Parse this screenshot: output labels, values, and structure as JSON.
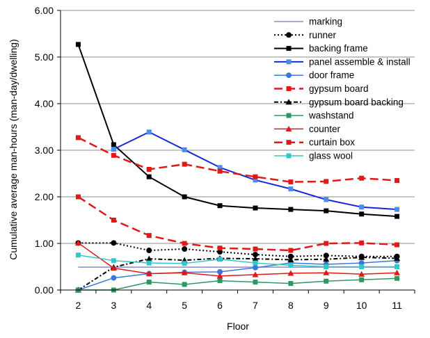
{
  "chart_data": {
    "type": "line",
    "title": "",
    "xlabel": "Floor",
    "ylabel": "Cumulative average man-hours (man-day/dwelling)",
    "x": [
      2,
      3,
      4,
      5,
      6,
      7,
      8,
      9,
      10,
      11
    ],
    "x_tick_labels": [
      "2",
      "3",
      "4",
      "5",
      "6",
      "7",
      "8",
      "9",
      "10",
      "11"
    ],
    "ylim": [
      0,
      6
    ],
    "y_ticks": [
      0,
      1,
      2,
      3,
      4,
      5,
      6
    ],
    "y_tick_labels": [
      "0.00",
      "1.00",
      "2.00",
      "3.00",
      "4.00",
      "5.00",
      "6.00"
    ],
    "grid": "horizontal",
    "legend_position": "top-right",
    "series": [
      {
        "name": "marking",
        "color": "#8a8ac8",
        "dash": "",
        "width": 1.5,
        "marker": "none",
        "values": [
          0.49,
          0.49,
          0.49,
          0.49,
          0.49,
          0.49,
          0.49,
          0.49,
          0.49,
          0.49
        ]
      },
      {
        "name": "runner",
        "color": "#000000",
        "dash": "2,3",
        "width": 2,
        "marker": "circle",
        "values": [
          1.01,
          1.01,
          0.85,
          0.88,
          0.82,
          0.76,
          0.72,
          0.74,
          0.72,
          0.72
        ]
      },
      {
        "name": "backing frame",
        "color": "#000000",
        "dash": "",
        "width": 2,
        "marker": "square",
        "values": [
          5.27,
          3.12,
          2.43,
          2.0,
          1.81,
          1.76,
          1.73,
          1.7,
          1.63,
          1.58
        ]
      },
      {
        "name": "panel assemble & install",
        "color": "#1428dc",
        "dash": "",
        "width": 2,
        "marker": "square-light",
        "values": [
          null,
          3.02,
          3.39,
          3.01,
          2.63,
          2.36,
          2.17,
          1.94,
          1.78,
          1.73
        ]
      },
      {
        "name": "door frame",
        "color": "#3c78dc",
        "dash": "",
        "width": 1.5,
        "marker": "circle",
        "values": [
          0.0,
          0.26,
          0.35,
          0.38,
          0.39,
          0.48,
          0.58,
          0.55,
          0.58,
          0.63
        ]
      },
      {
        "name": "gypsum board",
        "color": "#e01818",
        "dash": "12,6",
        "width": 2.5,
        "marker": "square",
        "values": [
          2.0,
          1.5,
          1.17,
          1.0,
          0.9,
          0.88,
          0.85,
          1.0,
          1.01,
          0.97
        ]
      },
      {
        "name": "gypsum board backing",
        "color": "#000000",
        "dash": "6,3,2,3",
        "width": 2,
        "marker": "triangle",
        "values": [
          0.0,
          0.49,
          0.67,
          0.64,
          0.68,
          0.67,
          0.65,
          0.66,
          0.7,
          0.68
        ]
      },
      {
        "name": "washstand",
        "color": "#2e9660",
        "dash": "",
        "width": 1.5,
        "marker": "square",
        "values": [
          0.0,
          0.0,
          0.17,
          0.12,
          0.2,
          0.17,
          0.14,
          0.19,
          0.22,
          0.25
        ]
      },
      {
        "name": "counter",
        "color": "#e01818",
        "dash": "",
        "width": 1.5,
        "marker": "triangle",
        "values": [
          1.01,
          0.47,
          0.35,
          0.37,
          0.3,
          0.33,
          0.36,
          0.37,
          0.34,
          0.37
        ]
      },
      {
        "name": "curtain box",
        "color": "#e01818",
        "dash": "12,6",
        "width": 2.5,
        "marker": "square",
        "values": [
          3.27,
          2.89,
          2.59,
          2.7,
          2.55,
          2.43,
          2.32,
          2.33,
          2.4,
          2.35
        ]
      },
      {
        "name": "glass wool",
        "color": "#30c8c8",
        "dash": "",
        "width": 1.5,
        "marker": "square",
        "values": [
          0.75,
          0.63,
          0.58,
          0.57,
          0.66,
          0.58,
          0.53,
          0.5,
          0.5,
          0.5
        ]
      }
    ]
  }
}
